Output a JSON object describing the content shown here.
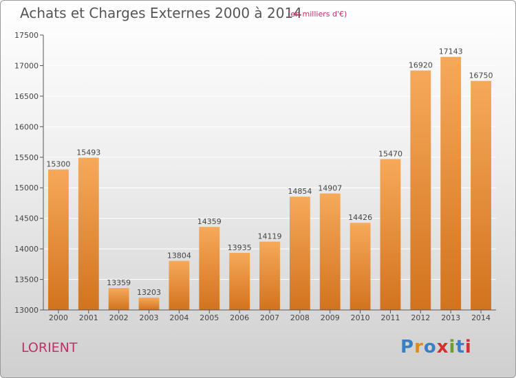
{
  "header": {
    "title": "Achats et Charges Externes 2000 à 2014",
    "subtitle": "(en milliers d'€)"
  },
  "footer": {
    "city": "LORIENT",
    "logo_text": "Proxiti",
    "logo_colors": [
      "#3a7fc4",
      "#e08a1e",
      "#3a7fc4",
      "#d03030",
      "#6aa02a",
      "#3a7fc4",
      "#d03030"
    ]
  },
  "colors": {
    "bar_top": "#f6a95a",
    "bar_bottom": "#d2731e",
    "grid": "#ffffff",
    "axis": "#555555"
  },
  "chart_data": {
    "type": "bar",
    "title": "Achats et Charges Externes 2000 à 2014",
    "subtitle": "(en milliers d'€)",
    "categories": [
      "2000",
      "2001",
      "2002",
      "2003",
      "2004",
      "2005",
      "2006",
      "2007",
      "2008",
      "2009",
      "2010",
      "2011",
      "2012",
      "2013",
      "2014"
    ],
    "values": [
      15300,
      15493,
      13359,
      13203,
      13804,
      14359,
      13935,
      14119,
      14854,
      14907,
      14426,
      15470,
      16920,
      17143,
      16750
    ],
    "ylim": [
      13000,
      17500
    ],
    "yticks": [
      13000,
      13500,
      14000,
      14500,
      15000,
      15500,
      16000,
      16500,
      17000,
      17500
    ],
    "grid": true,
    "xlabel": "",
    "ylabel": ""
  }
}
